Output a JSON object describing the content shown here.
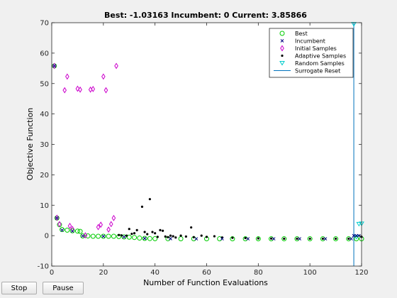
{
  "window": {
    "background": "#f0f0f0"
  },
  "buttons": {
    "stop_label": "Stop",
    "pause_label": "Pause"
  },
  "chart_data": {
    "type": "scatter",
    "title": "Best: -1.03163 Incumbent: 0 Current: 3.85866",
    "xlabel": "Number of Function Evaluations",
    "ylabel": "Objective Function",
    "xlim": [
      0,
      120
    ],
    "ylim": [
      -10,
      70
    ],
    "xticks": [
      0,
      20,
      40,
      60,
      80,
      100,
      120
    ],
    "yticks": [
      -10,
      0,
      10,
      20,
      30,
      40,
      50,
      60,
      70
    ],
    "grid": false,
    "legend_position": "top-right",
    "series": [
      {
        "name": "Best",
        "marker": "circle",
        "color": "#00cc00",
        "points": [
          [
            1,
            55.8
          ],
          [
            2,
            5.8
          ],
          [
            3,
            3.6
          ],
          [
            4,
            2
          ],
          [
            6,
            1.8
          ],
          [
            8,
            1.6
          ],
          [
            10,
            1.5
          ],
          [
            11,
            1.4
          ],
          [
            12,
            -0.1
          ],
          [
            14,
            -0.1
          ],
          [
            16,
            -0.2
          ],
          [
            18,
            -0.2
          ],
          [
            20,
            -0.2
          ],
          [
            22,
            -0.2
          ],
          [
            24,
            -0.2
          ],
          [
            26,
            -0.3
          ],
          [
            28,
            -0.4
          ],
          [
            30,
            -0.5
          ],
          [
            32,
            -0.6
          ],
          [
            34,
            -0.8
          ],
          [
            36,
            -0.9
          ],
          [
            38,
            -0.95
          ],
          [
            40,
            -1.0
          ],
          [
            45,
            -1.01
          ],
          [
            50,
            -1.02
          ],
          [
            55,
            -1.03
          ],
          [
            60,
            -1.03
          ],
          [
            65,
            -1.03
          ],
          [
            70,
            -1.03
          ],
          [
            75,
            -1.03
          ],
          [
            80,
            -1.03
          ],
          [
            85,
            -1.03
          ],
          [
            90,
            -1.03
          ],
          [
            95,
            -1.03
          ],
          [
            100,
            -1.03
          ],
          [
            105,
            -1.03
          ],
          [
            110,
            -1.03
          ],
          [
            115,
            -1.03
          ],
          [
            118,
            -1.03
          ],
          [
            120,
            -1.03
          ]
        ]
      },
      {
        "name": "Incumbent",
        "marker": "x",
        "color": "#000080",
        "points": [
          [
            1,
            55.8
          ],
          [
            2,
            5.8
          ],
          [
            4,
            1.8
          ],
          [
            8,
            1.5
          ],
          [
            12,
            -0.1
          ],
          [
            20,
            -0.2
          ],
          [
            28,
            -0.4
          ],
          [
            36,
            -0.9
          ],
          [
            46,
            -1.0
          ],
          [
            56,
            -1.03
          ],
          [
            66,
            -1.03
          ],
          [
            76,
            -1.03
          ],
          [
            86,
            -1.03
          ],
          [
            96,
            -1.03
          ],
          [
            106,
            -1.03
          ],
          [
            116,
            -1.03
          ],
          [
            117,
            0
          ],
          [
            118,
            0
          ],
          [
            119,
            0
          ]
        ]
      },
      {
        "name": "Initial Samples",
        "marker": "diamond",
        "color": "#cc00cc",
        "points": [
          [
            1,
            55.8
          ],
          [
            2,
            5.9
          ],
          [
            3,
            3.8
          ],
          [
            5,
            47.8
          ],
          [
            6,
            52.3
          ],
          [
            7,
            3.2
          ],
          [
            8,
            2.2
          ],
          [
            10,
            48.3
          ],
          [
            11,
            48
          ],
          [
            13,
            0.1
          ],
          [
            15,
            48
          ],
          [
            16,
            48.2
          ],
          [
            18,
            2.8
          ],
          [
            19,
            3.6
          ],
          [
            20,
            52.3
          ],
          [
            21,
            47.8
          ],
          [
            22,
            2
          ],
          [
            23,
            3.8
          ],
          [
            24,
            5.8
          ],
          [
            25,
            55.8
          ]
        ]
      },
      {
        "name": "Adaptive Samples",
        "marker": "dot",
        "color": "#000000",
        "points": [
          [
            26,
            0.2
          ],
          [
            27,
            0.1
          ],
          [
            29,
            0
          ],
          [
            30,
            2.2
          ],
          [
            31,
            0.6
          ],
          [
            32,
            0.8
          ],
          [
            33,
            1.8
          ],
          [
            35,
            9.5
          ],
          [
            36,
            1.2
          ],
          [
            37,
            0.5
          ],
          [
            38,
            12
          ],
          [
            39,
            1.2
          ],
          [
            40,
            0.8
          ],
          [
            41,
            -0.4
          ],
          [
            42,
            1.8
          ],
          [
            43,
            1.6
          ],
          [
            44,
            -0.3
          ],
          [
            45,
            -0.5
          ],
          [
            46,
            0
          ],
          [
            47,
            -0.2
          ],
          [
            48,
            -0.6
          ],
          [
            50,
            0
          ],
          [
            52,
            -0.3
          ],
          [
            54,
            2.7
          ],
          [
            55,
            -0.5
          ],
          [
            58,
            0
          ],
          [
            60,
            -0.4
          ],
          [
            63,
            -0.2
          ],
          [
            66,
            -0.6
          ],
          [
            70,
            -0.7
          ],
          [
            75,
            -0.8
          ],
          [
            80,
            -0.9
          ],
          [
            85,
            -0.95
          ],
          [
            90,
            -1.0
          ],
          [
            95,
            -1.0
          ],
          [
            100,
            -1.0
          ],
          [
            105,
            -1.0
          ],
          [
            110,
            -1.0
          ],
          [
            115,
            -1.0
          ],
          [
            120,
            -0.4
          ]
        ]
      },
      {
        "name": "Random Samples",
        "marker": "triangle-down",
        "color": "#00cccc",
        "points": [
          [
            117,
            69.5
          ],
          [
            119,
            3.8
          ],
          [
            120,
            3.9
          ],
          [
            118,
            -0.5
          ]
        ]
      },
      {
        "name": "Surrogate Reset",
        "marker": "vline",
        "color": "#0072bd",
        "x": 117
      }
    ]
  }
}
